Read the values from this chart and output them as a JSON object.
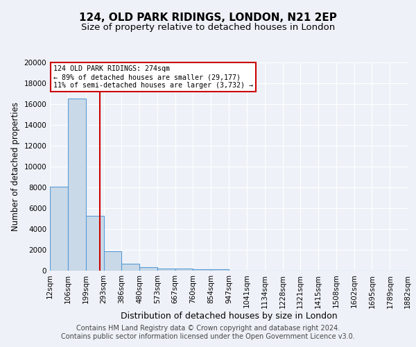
{
  "title1": "124, OLD PARK RIDINGS, LONDON, N21 2EP",
  "title2": "Size of property relative to detached houses in London",
  "xlabel": "Distribution of detached houses by size in London",
  "ylabel": "Number of detached properties",
  "bar_values": [
    8100,
    16500,
    5300,
    1850,
    700,
    320,
    230,
    200,
    160,
    130,
    0,
    0,
    0,
    0,
    0,
    0,
    0,
    0,
    0,
    0
  ],
  "bar_edges": [
    12,
    106,
    199,
    293,
    386,
    480,
    573,
    667,
    760,
    854,
    947,
    1041,
    1134,
    1228,
    1321,
    1415,
    1508,
    1602,
    1695,
    1789,
    1882
  ],
  "x_tick_labels": [
    "12sqm",
    "106sqm",
    "199sqm",
    "293sqm",
    "386sqm",
    "480sqm",
    "573sqm",
    "667sqm",
    "760sqm",
    "854sqm",
    "947sqm",
    "1041sqm",
    "1134sqm",
    "1228sqm",
    "1321sqm",
    "1415sqm",
    "1508sqm",
    "1602sqm",
    "1695sqm",
    "1789sqm",
    "1882sqm"
  ],
  "ylim": [
    0,
    20000
  ],
  "yticks": [
    0,
    2000,
    4000,
    6000,
    8000,
    10000,
    12000,
    14000,
    16000,
    18000,
    20000
  ],
  "bar_color": "#c9d9e8",
  "bar_edge_color": "#5b9bd5",
  "vline_x": 274,
  "vline_color": "#cc0000",
  "annotation_text": "124 OLD PARK RIDINGS: 274sqm\n← 89% of detached houses are smaller (29,177)\n11% of semi-detached houses are larger (3,732) →",
  "annotation_box_color": "#ffffff",
  "annotation_box_edge_color": "#cc0000",
  "background_color": "#eef2f8",
  "footer_text": "Contains HM Land Registry data © Crown copyright and database right 2024.\nContains public sector information licensed under the Open Government Licence v3.0.",
  "grid_color": "#ffffff",
  "title1_fontsize": 11,
  "title2_fontsize": 9.5,
  "xlabel_fontsize": 9,
  "ylabel_fontsize": 8.5,
  "tick_fontsize": 7.5,
  "footer_fontsize": 7
}
